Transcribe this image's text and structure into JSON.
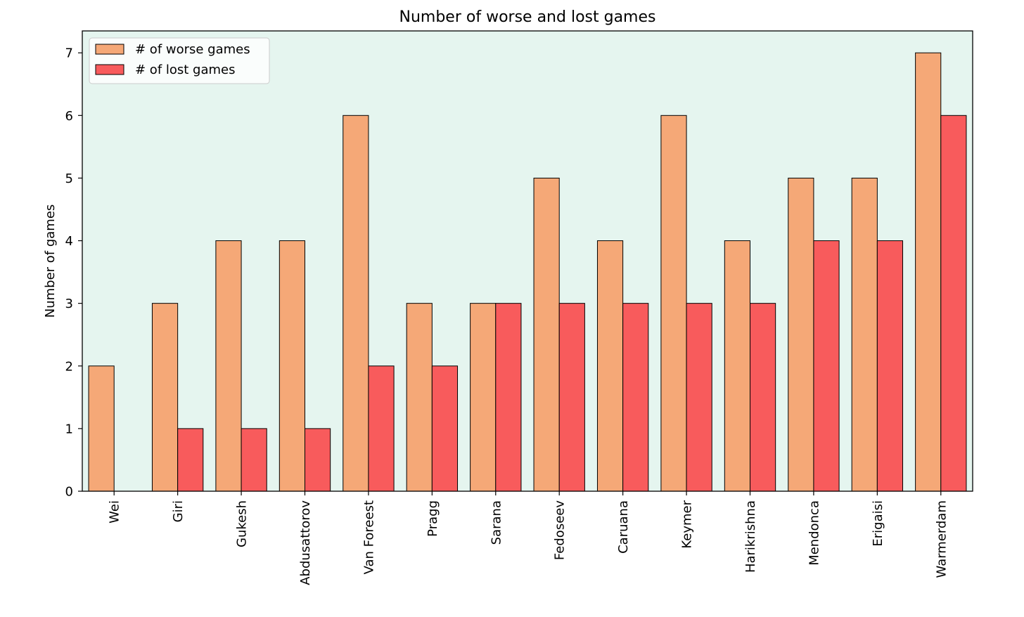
{
  "chart_data": {
    "type": "bar",
    "title": "Number of worse and lost games",
    "xlabel": "",
    "ylabel": "Number of games",
    "ylim": [
      0,
      7.35
    ],
    "yticks": [
      0,
      1,
      2,
      3,
      4,
      5,
      6,
      7
    ],
    "grid": false,
    "legend_position": "top-left",
    "background_color": "#e5f5ef",
    "categories": [
      "Wei",
      "Giri",
      "Gukesh",
      "Abdusattorov",
      "Van Foreest",
      "Pragg",
      "Sarana",
      "Fedoseev",
      "Caruana",
      "Keymer",
      "Harikrishna",
      "Mendonca",
      "Erigaisi",
      "Warmerdam"
    ],
    "series": [
      {
        "name": "# of worse games",
        "color": "#f5a877",
        "values": [
          2,
          3,
          4,
          4,
          6,
          3,
          3,
          5,
          4,
          6,
          4,
          5,
          5,
          7
        ]
      },
      {
        "name": "# of lost games",
        "color": "#f85b5c",
        "values": [
          0,
          1,
          1,
          1,
          2,
          2,
          3,
          3,
          3,
          3,
          3,
          4,
          4,
          6
        ]
      }
    ]
  }
}
